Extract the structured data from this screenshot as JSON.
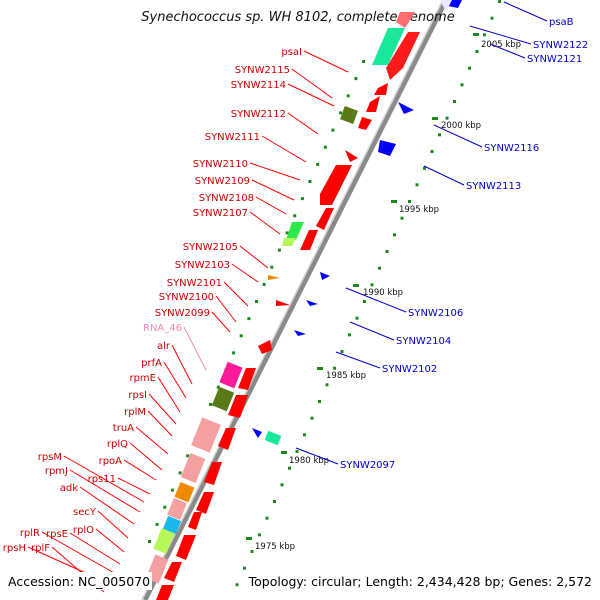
{
  "title": "Synechococcus sp. WH 8102, complete genome",
  "footer": {
    "accession": "Accession: NC_005070",
    "topology": "Topology: circular; Length: 2,434,428 bp; Genes: 2,572"
  },
  "scale_labels": [
    {
      "text": "2005 kbp",
      "kbp": 2005
    },
    {
      "text": "2000 kbp",
      "kbp": 2000
    },
    {
      "text": "1995 kbp",
      "kbp": 1995
    },
    {
      "text": "1990 kbp",
      "kbp": 1990
    },
    {
      "text": "1985 kbp",
      "kbp": 1985
    },
    {
      "text": "1980 kbp",
      "kbp": 1980
    },
    {
      "text": "1975 kbp",
      "kbp": 1975
    }
  ],
  "left_genes": [
    {
      "label": "psaI",
      "color": "#ff0000"
    },
    {
      "label": "SYNW2115",
      "color": "#ff0000"
    },
    {
      "label": "SYNW2114",
      "color": "#ff0000"
    },
    {
      "label": "SYNW2112",
      "color": "#ff0000"
    },
    {
      "label": "SYNW2111",
      "color": "#ff0000"
    },
    {
      "label": "SYNW2110",
      "color": "#ff0000"
    },
    {
      "label": "SYNW2109",
      "color": "#ff0000"
    },
    {
      "label": "SYNW2108",
      "color": "#ff0000"
    },
    {
      "label": "SYNW2107",
      "color": "#ff0000"
    },
    {
      "label": "SYNW2105",
      "color": "#ff0000"
    },
    {
      "label": "SYNW2103",
      "color": "#ff0000"
    },
    {
      "label": "SYNW2101",
      "color": "#ff0000"
    },
    {
      "label": "SYNW2100",
      "color": "#ff0000"
    },
    {
      "label": "SYNW2099",
      "color": "#ff0000"
    },
    {
      "label": "RNA_46",
      "color": "#f28ab8"
    },
    {
      "label": "alr",
      "color": "#ff0000"
    },
    {
      "label": "prfA",
      "color": "#ff0000"
    },
    {
      "label": "rpmE",
      "color": "#ff0000"
    },
    {
      "label": "rpsI",
      "color": "#ff0000"
    },
    {
      "label": "rplM",
      "color": "#ff0000"
    },
    {
      "label": "truA",
      "color": "#ff0000"
    },
    {
      "label": "rplQ",
      "color": "#ff0000"
    },
    {
      "label": "rpoA",
      "color": "#ff0000"
    },
    {
      "label": "rps11",
      "color": "#ff0000"
    },
    {
      "label": "rpsM",
      "color": "#ff0000"
    },
    {
      "label": "rpmJ",
      "color": "#ff0000"
    },
    {
      "label": "adk",
      "color": "#ff0000"
    },
    {
      "label": "secY",
      "color": "#ff0000"
    },
    {
      "label": "rplO",
      "color": "#ff0000"
    },
    {
      "label": "rpsE",
      "color": "#ff0000"
    },
    {
      "label": "rplR",
      "color": "#ff0000"
    },
    {
      "label": "rpsH",
      "color": "#ff0000"
    },
    {
      "label": "rplF",
      "color": "#ff0000"
    }
  ],
  "right_genes": [
    {
      "label": "psaB",
      "color": "#0000cc"
    },
    {
      "label": "SYNW2122",
      "color": "#0000cc"
    },
    {
      "label": "SYNW2121",
      "color": "#0000cc"
    },
    {
      "label": "SYNW2116",
      "color": "#0000cc"
    },
    {
      "label": "SYNW2113",
      "color": "#0000cc"
    },
    {
      "label": "SYNW2106",
      "color": "#0000cc"
    },
    {
      "label": "SYNW2104",
      "color": "#0000cc"
    },
    {
      "label": "SYNW2102",
      "color": "#0000cc"
    },
    {
      "label": "SYNW2097",
      "color": "#0000cc"
    }
  ],
  "feature_colors": {
    "forward_gene": "#ff0000",
    "reverse_gene": "#0000ff",
    "rna": "#f4a0a0",
    "backbone": "#999999",
    "tick": "#1a8a1a"
  }
}
